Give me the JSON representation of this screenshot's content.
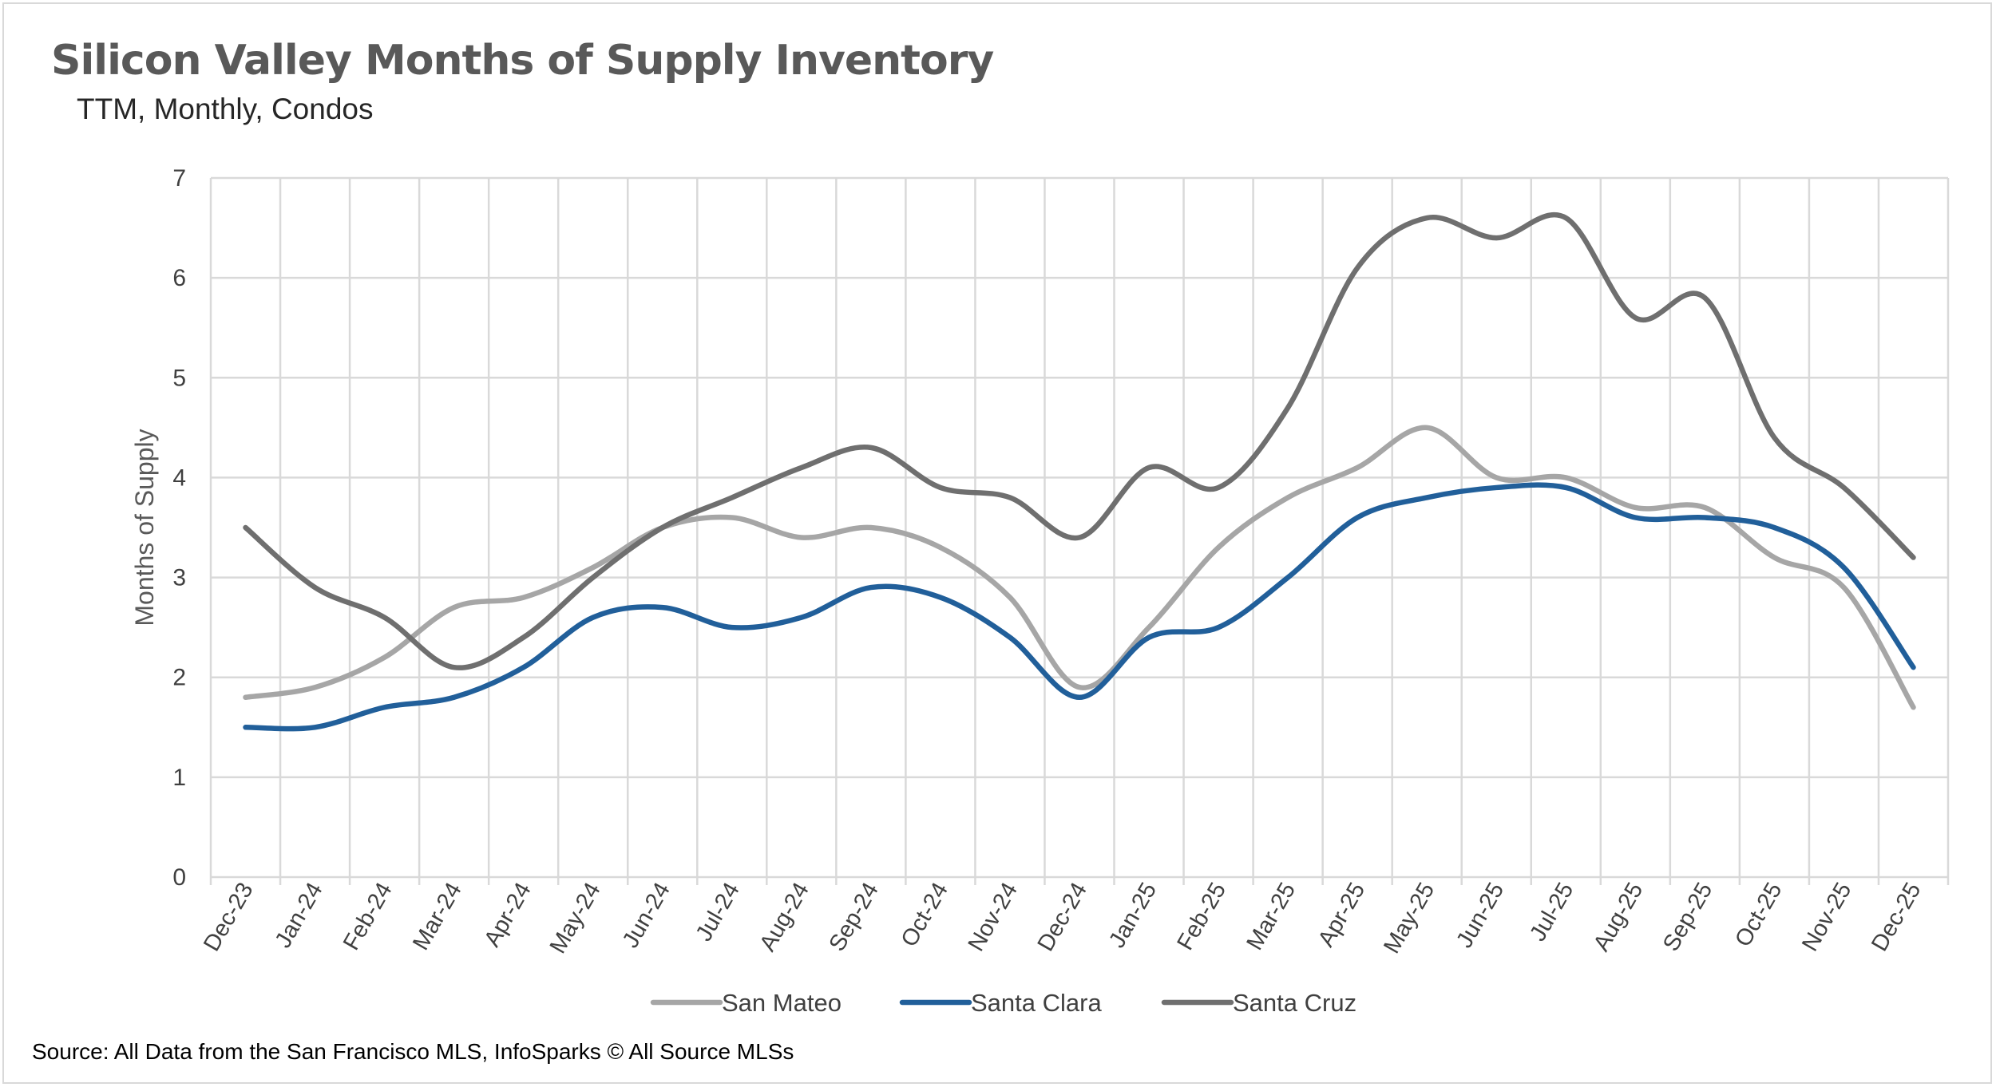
{
  "chart_data": {
    "type": "line",
    "title": "Silicon Valley Months of Supply Inventory",
    "subtitle": "TTM, Monthly, Condos",
    "xlabel": "",
    "ylabel": "Months of Supply",
    "ylim": [
      0,
      7
    ],
    "yticks": [
      0,
      1,
      2,
      3,
      4,
      5,
      6,
      7
    ],
    "grid": true,
    "legend_position": "bottom",
    "source": "Source: All Data from the San Francisco MLS, InfoSparks © All Source MLSs",
    "categories": [
      "Dec-23",
      "Jan-24",
      "Feb-24",
      "Mar-24",
      "Apr-24",
      "May-24",
      "Jun-24",
      "Jul-24",
      "Aug-24",
      "Sep-24",
      "Oct-24",
      "Nov-24",
      "Dec-24",
      "Jan-25",
      "Feb-25",
      "Mar-25",
      "Apr-25",
      "May-25",
      "Jun-25",
      "Jul-25",
      "Aug-25",
      "Sep-25",
      "Oct-25",
      "Nov-25",
      "Dec-25"
    ],
    "series": [
      {
        "name": "San Mateo",
        "color": "#a6a6a6",
        "values": [
          1.8,
          1.9,
          2.2,
          2.7,
          2.8,
          3.1,
          3.5,
          3.6,
          3.4,
          3.5,
          3.3,
          2.8,
          1.9,
          2.5,
          3.3,
          3.8,
          4.1,
          4.5,
          4.0,
          4.0,
          3.7,
          3.7,
          3.2,
          2.9,
          1.7
        ]
      },
      {
        "name": "Santa Clara",
        "color": "#215f9a",
        "values": [
          1.5,
          1.5,
          1.7,
          1.8,
          2.1,
          2.6,
          2.7,
          2.5,
          2.6,
          2.9,
          2.8,
          2.4,
          1.8,
          2.4,
          2.5,
          3.0,
          3.6,
          3.8,
          3.9,
          3.9,
          3.6,
          3.6,
          3.5,
          3.1,
          2.1
        ]
      },
      {
        "name": "Santa Cruz",
        "color": "#6f6f6f",
        "values": [
          3.5,
          2.9,
          2.6,
          2.1,
          2.4,
          3.0,
          3.5,
          3.8,
          4.1,
          4.3,
          3.9,
          3.8,
          3.4,
          4.1,
          3.9,
          4.7,
          6.1,
          6.6,
          6.4,
          6.6,
          5.6,
          5.8,
          4.4,
          3.9,
          3.2
        ]
      }
    ]
  }
}
